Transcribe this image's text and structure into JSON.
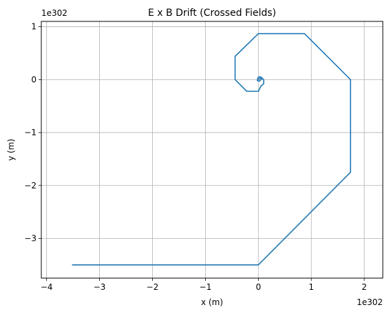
{
  "chart_data": {
    "type": "line",
    "title": "E x B Drift (Crossed Fields)",
    "xlabel": "x (m)",
    "ylabel": "y (m)",
    "x_offset_label": "1e302",
    "y_offset_label": "1e302",
    "xlim": [
      -4.1,
      2.35
    ],
    "ylim": [
      -3.75,
      1.1
    ],
    "xticks": [
      -4,
      -3,
      -2,
      -1,
      0,
      1,
      2
    ],
    "yticks": [
      -3,
      -2,
      -1,
      0,
      1
    ],
    "xtick_labels": [
      "−4",
      "−3",
      "−2",
      "−1",
      "0",
      "1",
      "2"
    ],
    "ytick_labels": [
      "−3",
      "−2",
      "−1",
      "0",
      "1"
    ],
    "grid": true,
    "line_color": "#1f77b4",
    "series": [
      {
        "x": [
          0.0,
          0.03,
          0.06,
          0.02,
          -0.02,
          -0.01,
          0.0,
          0.05,
          0.1,
          0.1,
          0.05,
          0.0,
          -0.22,
          -0.44,
          -0.44,
          0.0,
          0.87,
          1.74,
          1.74,
          0.0,
          -3.52
        ],
        "y": [
          0.0,
          0.03,
          0.01,
          -0.03,
          -0.02,
          0.03,
          0.05,
          0.05,
          0.0,
          -0.08,
          -0.12,
          -0.22,
          -0.22,
          0.0,
          0.44,
          0.87,
          0.87,
          0.0,
          -1.75,
          -3.5,
          -3.5
        ]
      }
    ]
  }
}
